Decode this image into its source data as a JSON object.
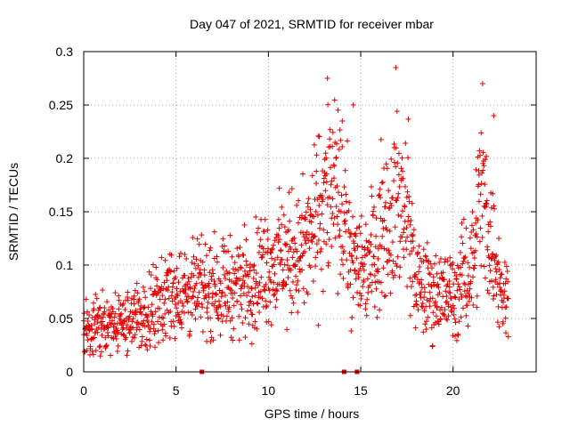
{
  "chart_data": {
    "type": "scatter",
    "title": "Day 047 of 2021, SRMTID for receiver mbar",
    "xlabel": "GPS time / hours",
    "ylabel": "SRMTID / TECUs",
    "xlim": [
      0,
      24.5
    ],
    "ylim": [
      0,
      0.3
    ],
    "x_ticks": [
      "0",
      "5",
      "10",
      "15",
      "20"
    ],
    "x_tick_values": [
      0,
      5,
      10,
      15,
      20
    ],
    "y_ticks": [
      "0",
      "0.05",
      "0.1",
      "0.15",
      "0.2",
      "0.25",
      "0.3"
    ],
    "y_tick_values": [
      0,
      0.05,
      0.1,
      0.15,
      0.2,
      0.25,
      0.3
    ],
    "grid": true,
    "marker": "+",
    "series_color": "#e00000",
    "zero_value_hours": [
      6.4,
      14.1,
      14.8
    ],
    "approximate_trend": {
      "x": [
        0,
        1,
        2,
        3,
        4,
        5,
        6,
        7,
        8,
        9,
        10,
        11,
        12,
        12.8,
        13.3,
        14,
        14.6,
        15.3,
        16,
        16.6,
        17,
        17.6,
        18,
        19,
        20,
        21,
        21.5,
        22,
        22.6,
        23
      ],
      "y": [
        0.04,
        0.042,
        0.045,
        0.05,
        0.065,
        0.075,
        0.075,
        0.08,
        0.08,
        0.085,
        0.1,
        0.105,
        0.115,
        0.15,
        0.17,
        0.15,
        0.1,
        0.1,
        0.13,
        0.15,
        0.16,
        0.14,
        0.08,
        0.075,
        0.07,
        0.1,
        0.17,
        0.13,
        0.075,
        0.07
      ]
    },
    "approximate_peaks": {
      "x": [
        13.2,
        14.0,
        14.6,
        16.9,
        21.6,
        22.2
      ],
      "y": [
        0.275,
        0.235,
        0.25,
        0.285,
        0.27,
        0.24
      ]
    }
  }
}
